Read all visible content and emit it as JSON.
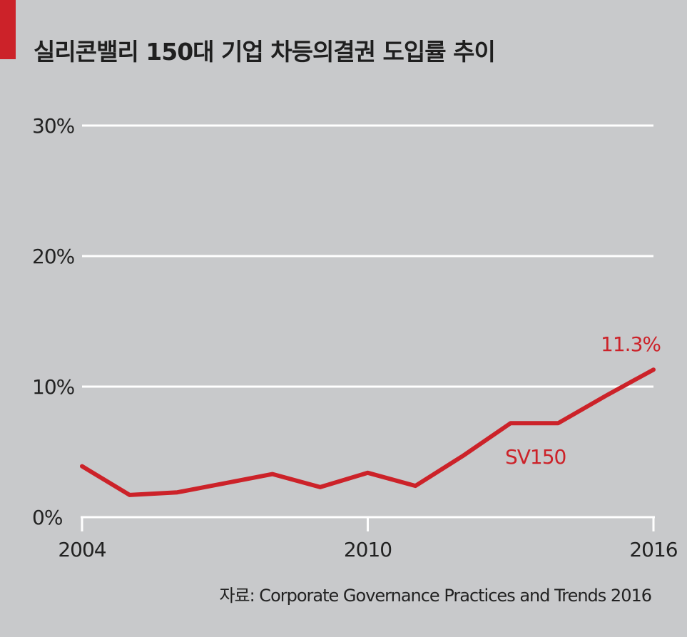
{
  "title": "실리콘밸리 150대 기업 차등의결권 도입률 추이",
  "source": "자료: Corporate Governance Practices and Trends 2016",
  "colors": {
    "accent": "#cc2229",
    "background": "#c8c9cb",
    "grid": "#ffffff",
    "text": "#222222"
  },
  "chart_data": {
    "type": "line",
    "title": "실리콘밸리 150대 기업 차등의결권 도입률 추이",
    "xlabel": "",
    "ylabel": "",
    "xlim": [
      2004,
      2016
    ],
    "ylim": [
      0,
      30
    ],
    "x_ticks": [
      "2004",
      "2010",
      "2016"
    ],
    "y_ticks": [
      "0%",
      "10%",
      "20%",
      "30%"
    ],
    "grid": true,
    "series": [
      {
        "name": "SV150",
        "x": [
          2004,
          2005,
          2006,
          2007,
          2008,
          2009,
          2010,
          2011,
          2012,
          2013,
          2014,
          2015,
          2016
        ],
        "y": [
          3.9,
          1.7,
          1.9,
          2.6,
          3.3,
          2.3,
          3.4,
          2.4,
          4.7,
          7.2,
          7.2,
          9.3,
          11.3
        ]
      }
    ],
    "annotations": [
      {
        "text": "11.3%"
      }
    ]
  }
}
